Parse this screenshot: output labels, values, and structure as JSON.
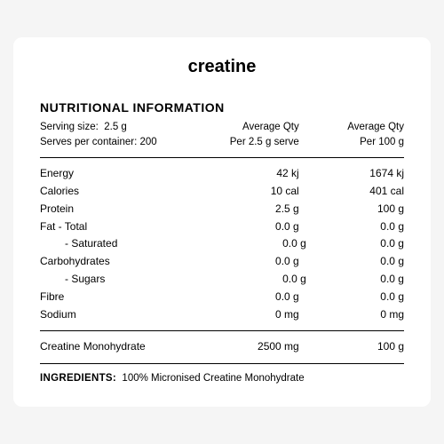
{
  "brand": "creatine",
  "section_title": "NUTRITIONAL INFORMATION",
  "serving_size_label": "Serving size:",
  "serving_size_value": "2.5 g",
  "serves_per_container_label": "Serves per container:",
  "serves_per_container_value": "200",
  "col1_line1": "Average Qty",
  "col1_line2": "Per 2.5 g serve",
  "col2_line1": "Average Qty",
  "col2_line2": "Per 100 g",
  "rows": [
    {
      "label": "Energy",
      "indent": false,
      "c1": "42 kj",
      "c2": "1674 kj"
    },
    {
      "label": "Calories",
      "indent": false,
      "c1": "10 cal",
      "c2": "401 cal"
    },
    {
      "label": "Protein",
      "indent": false,
      "c1": "2.5 g",
      "c2": "100 g"
    },
    {
      "label": "Fat  - Total",
      "indent": false,
      "c1": "0.0 g",
      "c2": "0.0 g"
    },
    {
      "label": "- Saturated",
      "indent": true,
      "c1": "0.0 g",
      "c2": "0.0 g"
    },
    {
      "label": "Carbohydrates",
      "indent": false,
      "c1": "0.0 g",
      "c2": "0.0 g"
    },
    {
      "label": "- Sugars",
      "indent": true,
      "c1": "0.0 g",
      "c2": "0.0 g"
    },
    {
      "label": "Fibre",
      "indent": false,
      "c1": "0.0 g",
      "c2": "0.0 g"
    },
    {
      "label": "Sodium",
      "indent": false,
      "c1": "0 mg",
      "c2": "0 mg"
    }
  ],
  "creatine_row": {
    "label": "Creatine Monohydrate",
    "c1": "2500 mg",
    "c2": "100 g"
  },
  "ingredients_label": "INGREDIENTS:",
  "ingredients_value": "100% Micronised Creatine Monohydrate",
  "colors": {
    "panel_bg": "#ffffff",
    "page_bg": "#f5f5f5",
    "text": "#000000",
    "rule": "#000000"
  }
}
